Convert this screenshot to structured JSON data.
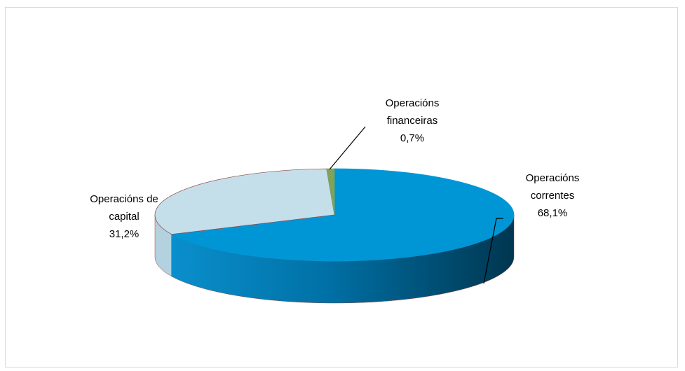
{
  "chart_data": {
    "type": "pie3d",
    "categories": [
      "Operacións correntes",
      "Operacións de capital",
      "Operacións financeiras"
    ],
    "values": [
      68.1,
      31.2,
      0.7
    ],
    "value_labels": [
      "68,1%",
      "31,2%",
      "0,7%"
    ],
    "colors": [
      "#0096d6",
      "#c4deea",
      "#7fa35a"
    ]
  }
}
